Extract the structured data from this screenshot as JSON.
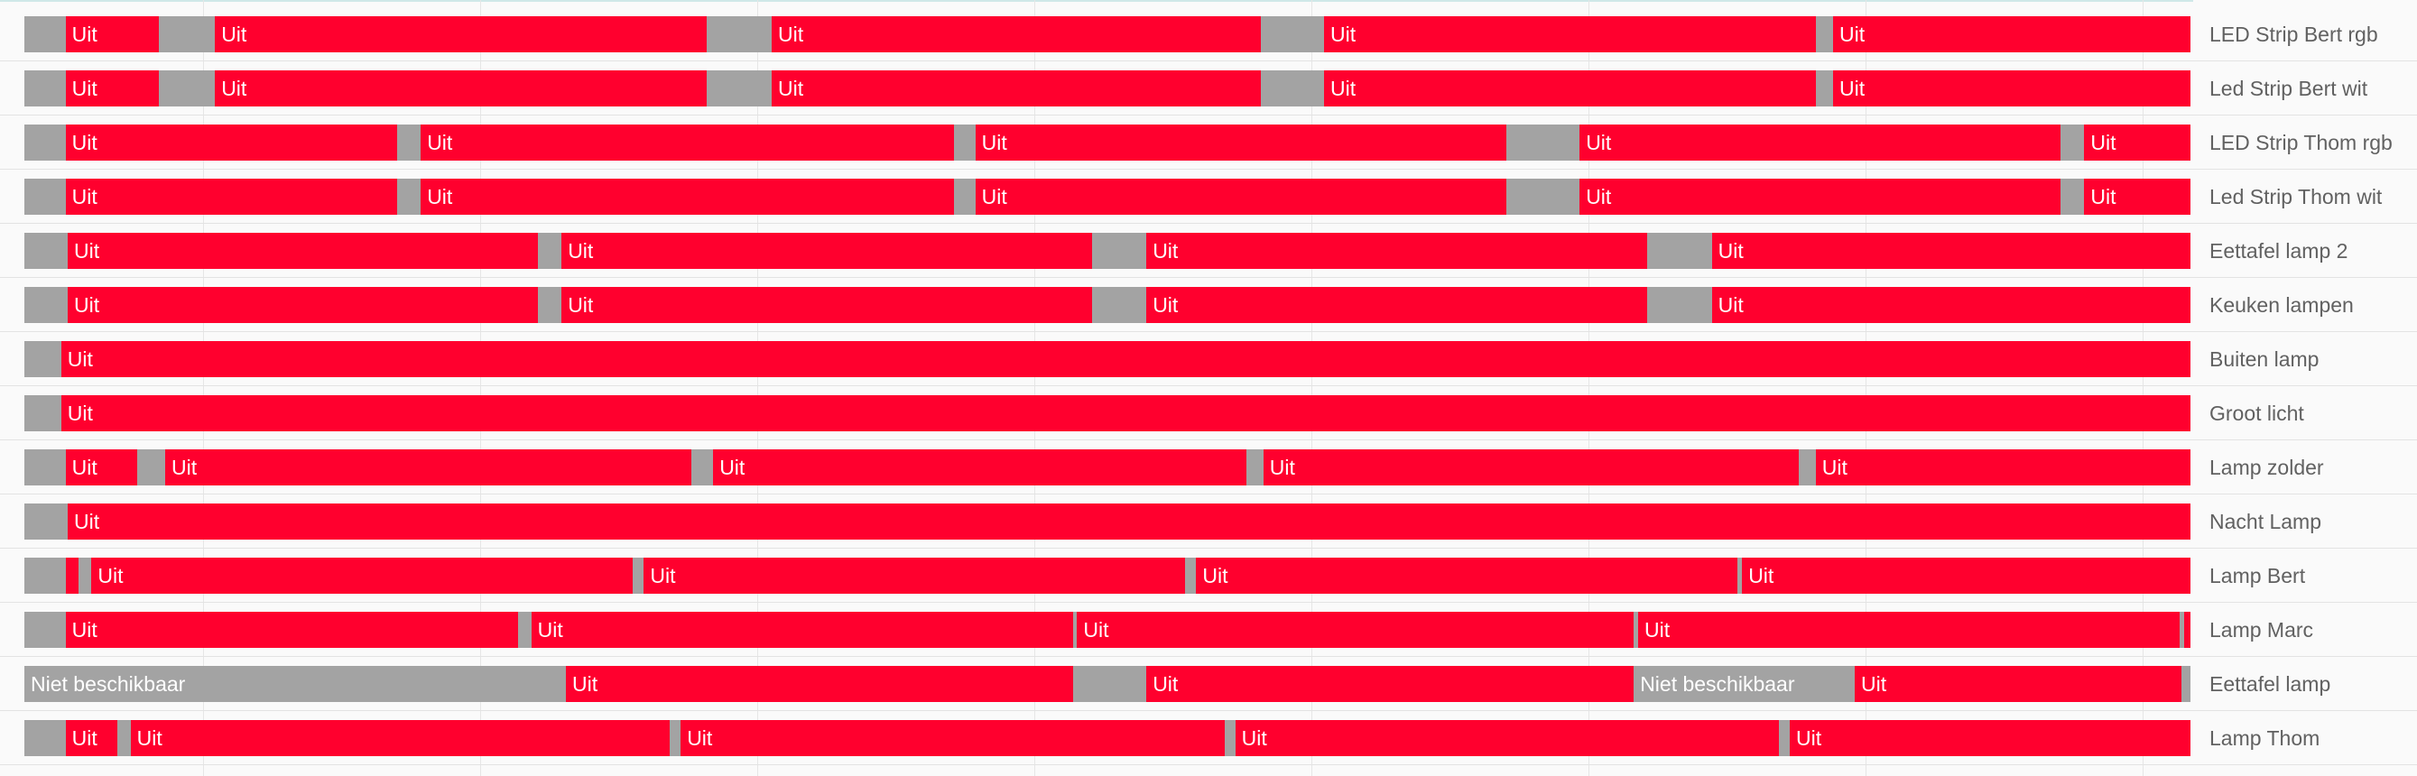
{
  "history": {
    "state_colors": {
      "off": "#ff002e",
      "unavailable": "#a3a3a3"
    },
    "rows": [
      {
        "label": "LED Strip Bert rgb",
        "segments": [
          {
            "state": "unavailable",
            "start": 0,
            "end": 0.019,
            "text": ""
          },
          {
            "state": "off",
            "start": 0.019,
            "end": 0.062,
            "text": "Uit"
          },
          {
            "state": "unavailable",
            "start": 0.062,
            "end": 0.088,
            "text": ""
          },
          {
            "state": "off",
            "start": 0.088,
            "end": 0.315,
            "text": "Uit"
          },
          {
            "state": "unavailable",
            "start": 0.315,
            "end": 0.345,
            "text": ""
          },
          {
            "state": "off",
            "start": 0.345,
            "end": 0.571,
            "text": "Uit"
          },
          {
            "state": "unavailable",
            "start": 0.571,
            "end": 0.6,
            "text": ""
          },
          {
            "state": "off",
            "start": 0.6,
            "end": 0.827,
            "text": "Uit"
          },
          {
            "state": "unavailable",
            "start": 0.827,
            "end": 0.835,
            "text": ""
          },
          {
            "state": "off",
            "start": 0.835,
            "end": 1,
            "text": "Uit"
          }
        ]
      },
      {
        "label": "Led Strip Bert wit",
        "segments": [
          {
            "state": "unavailable",
            "start": 0,
            "end": 0.019,
            "text": ""
          },
          {
            "state": "off",
            "start": 0.019,
            "end": 0.062,
            "text": "Uit"
          },
          {
            "state": "unavailable",
            "start": 0.062,
            "end": 0.088,
            "text": ""
          },
          {
            "state": "off",
            "start": 0.088,
            "end": 0.315,
            "text": "Uit"
          },
          {
            "state": "unavailable",
            "start": 0.315,
            "end": 0.345,
            "text": ""
          },
          {
            "state": "off",
            "start": 0.345,
            "end": 0.571,
            "text": "Uit"
          },
          {
            "state": "unavailable",
            "start": 0.571,
            "end": 0.6,
            "text": ""
          },
          {
            "state": "off",
            "start": 0.6,
            "end": 0.827,
            "text": "Uit"
          },
          {
            "state": "unavailable",
            "start": 0.827,
            "end": 0.835,
            "text": ""
          },
          {
            "state": "off",
            "start": 0.835,
            "end": 1,
            "text": "Uit"
          }
        ]
      },
      {
        "label": "LED Strip Thom rgb",
        "segments": [
          {
            "state": "unavailable",
            "start": 0,
            "end": 0.019,
            "text": ""
          },
          {
            "state": "off",
            "start": 0.019,
            "end": 0.172,
            "text": "Uit"
          },
          {
            "state": "unavailable",
            "start": 0.172,
            "end": 0.183,
            "text": ""
          },
          {
            "state": "off",
            "start": 0.183,
            "end": 0.429,
            "text": "Uit"
          },
          {
            "state": "unavailable",
            "start": 0.429,
            "end": 0.439,
            "text": ""
          },
          {
            "state": "off",
            "start": 0.439,
            "end": 0.684,
            "text": "Uit"
          },
          {
            "state": "unavailable",
            "start": 0.684,
            "end": 0.718,
            "text": ""
          },
          {
            "state": "off",
            "start": 0.718,
            "end": 0.94,
            "text": "Uit"
          },
          {
            "state": "unavailable",
            "start": 0.94,
            "end": 0.951,
            "text": ""
          },
          {
            "state": "off",
            "start": 0.951,
            "end": 1,
            "text": "Uit"
          }
        ]
      },
      {
        "label": "Led Strip Thom wit",
        "segments": [
          {
            "state": "unavailable",
            "start": 0,
            "end": 0.019,
            "text": ""
          },
          {
            "state": "off",
            "start": 0.019,
            "end": 0.172,
            "text": "Uit"
          },
          {
            "state": "unavailable",
            "start": 0.172,
            "end": 0.183,
            "text": ""
          },
          {
            "state": "off",
            "start": 0.183,
            "end": 0.429,
            "text": "Uit"
          },
          {
            "state": "unavailable",
            "start": 0.429,
            "end": 0.439,
            "text": ""
          },
          {
            "state": "off",
            "start": 0.439,
            "end": 0.684,
            "text": "Uit"
          },
          {
            "state": "unavailable",
            "start": 0.684,
            "end": 0.718,
            "text": ""
          },
          {
            "state": "off",
            "start": 0.718,
            "end": 0.94,
            "text": "Uit"
          },
          {
            "state": "unavailable",
            "start": 0.94,
            "end": 0.951,
            "text": ""
          },
          {
            "state": "off",
            "start": 0.951,
            "end": 1,
            "text": "Uit"
          }
        ]
      },
      {
        "label": "Eettafel lamp 2",
        "segments": [
          {
            "state": "unavailable",
            "start": 0,
            "end": 0.02,
            "text": ""
          },
          {
            "state": "off",
            "start": 0.02,
            "end": 0.237,
            "text": "Uit"
          },
          {
            "state": "unavailable",
            "start": 0.237,
            "end": 0.248,
            "text": ""
          },
          {
            "state": "off",
            "start": 0.248,
            "end": 0.493,
            "text": "Uit"
          },
          {
            "state": "unavailable",
            "start": 0.493,
            "end": 0.518,
            "text": ""
          },
          {
            "state": "off",
            "start": 0.518,
            "end": 0.749,
            "text": "Uit"
          },
          {
            "state": "unavailable",
            "start": 0.749,
            "end": 0.779,
            "text": ""
          },
          {
            "state": "off",
            "start": 0.779,
            "end": 1,
            "text": "Uit"
          }
        ]
      },
      {
        "label": "Keuken lampen",
        "segments": [
          {
            "state": "unavailable",
            "start": 0,
            "end": 0.02,
            "text": ""
          },
          {
            "state": "off",
            "start": 0.02,
            "end": 0.237,
            "text": "Uit"
          },
          {
            "state": "unavailable",
            "start": 0.237,
            "end": 0.248,
            "text": ""
          },
          {
            "state": "off",
            "start": 0.248,
            "end": 0.493,
            "text": "Uit"
          },
          {
            "state": "unavailable",
            "start": 0.493,
            "end": 0.518,
            "text": ""
          },
          {
            "state": "off",
            "start": 0.518,
            "end": 0.749,
            "text": "Uit"
          },
          {
            "state": "unavailable",
            "start": 0.749,
            "end": 0.779,
            "text": ""
          },
          {
            "state": "off",
            "start": 0.779,
            "end": 1,
            "text": "Uit"
          }
        ]
      },
      {
        "label": "Buiten lamp",
        "segments": [
          {
            "state": "unavailable",
            "start": 0,
            "end": 0.017,
            "text": ""
          },
          {
            "state": "off",
            "start": 0.017,
            "end": 1,
            "text": "Uit"
          }
        ]
      },
      {
        "label": "Groot licht",
        "segments": [
          {
            "state": "unavailable",
            "start": 0,
            "end": 0.017,
            "text": ""
          },
          {
            "state": "off",
            "start": 0.017,
            "end": 1,
            "text": "Uit"
          }
        ]
      },
      {
        "label": "Lamp zolder",
        "segments": [
          {
            "state": "unavailable",
            "start": 0,
            "end": 0.019,
            "text": ""
          },
          {
            "state": "off",
            "start": 0.019,
            "end": 0.052,
            "text": "Uit"
          },
          {
            "state": "unavailable",
            "start": 0.052,
            "end": 0.065,
            "text": ""
          },
          {
            "state": "off",
            "start": 0.065,
            "end": 0.308,
            "text": "Uit"
          },
          {
            "state": "unavailable",
            "start": 0.308,
            "end": 0.318,
            "text": ""
          },
          {
            "state": "off",
            "start": 0.318,
            "end": 0.564,
            "text": "Uit"
          },
          {
            "state": "unavailable",
            "start": 0.564,
            "end": 0.572,
            "text": ""
          },
          {
            "state": "off",
            "start": 0.572,
            "end": 0.819,
            "text": "Uit"
          },
          {
            "state": "unavailable",
            "start": 0.819,
            "end": 0.827,
            "text": ""
          },
          {
            "state": "off",
            "start": 0.827,
            "end": 1,
            "text": "Uit"
          }
        ]
      },
      {
        "label": "Nacht Lamp",
        "segments": [
          {
            "state": "unavailable",
            "start": 0,
            "end": 0.02,
            "text": ""
          },
          {
            "state": "off",
            "start": 0.02,
            "end": 1,
            "text": "Uit"
          }
        ]
      },
      {
        "label": "Lamp Bert",
        "segments": [
          {
            "state": "unavailable",
            "start": 0,
            "end": 0.019,
            "text": ""
          },
          {
            "state": "off",
            "start": 0.019,
            "end": 0.025,
            "text": ""
          },
          {
            "state": "unavailable",
            "start": 0.025,
            "end": 0.031,
            "text": ""
          },
          {
            "state": "off",
            "start": 0.031,
            "end": 0.281,
            "text": "Uit"
          },
          {
            "state": "unavailable",
            "start": 0.281,
            "end": 0.286,
            "text": ""
          },
          {
            "state": "off",
            "start": 0.286,
            "end": 0.536,
            "text": "Uit"
          },
          {
            "state": "unavailable",
            "start": 0.536,
            "end": 0.541,
            "text": ""
          },
          {
            "state": "off",
            "start": 0.541,
            "end": 0.791,
            "text": "Uit"
          },
          {
            "state": "unavailable",
            "start": 0.791,
            "end": 0.793,
            "text": ""
          },
          {
            "state": "off",
            "start": 0.793,
            "end": 1,
            "text": "Uit"
          }
        ]
      },
      {
        "label": "Lamp Marc",
        "segments": [
          {
            "state": "unavailable",
            "start": 0,
            "end": 0.019,
            "text": ""
          },
          {
            "state": "off",
            "start": 0.019,
            "end": 0.228,
            "text": "Uit"
          },
          {
            "state": "unavailable",
            "start": 0.228,
            "end": 0.234,
            "text": ""
          },
          {
            "state": "off",
            "start": 0.234,
            "end": 0.484,
            "text": "Uit"
          },
          {
            "state": "unavailable",
            "start": 0.484,
            "end": 0.486,
            "text": ""
          },
          {
            "state": "off",
            "start": 0.486,
            "end": 0.743,
            "text": "Uit"
          },
          {
            "state": "unavailable",
            "start": 0.743,
            "end": 0.745,
            "text": ""
          },
          {
            "state": "off",
            "start": 0.745,
            "end": 0.995,
            "text": "Uit"
          },
          {
            "state": "unavailable",
            "start": 0.995,
            "end": 0.997,
            "text": ""
          },
          {
            "state": "off",
            "start": 0.997,
            "end": 1,
            "text": ""
          }
        ]
      },
      {
        "label": "Eettafel lamp",
        "segments": [
          {
            "state": "unavailable",
            "start": 0,
            "end": 0.25,
            "text": "Niet beschikbaar"
          },
          {
            "state": "off",
            "start": 0.25,
            "end": 0.484,
            "text": "Uit"
          },
          {
            "state": "unavailable",
            "start": 0.484,
            "end": 0.518,
            "text": ""
          },
          {
            "state": "off",
            "start": 0.518,
            "end": 0.743,
            "text": "Uit"
          },
          {
            "state": "unavailable",
            "start": 0.743,
            "end": 0.845,
            "text": "Niet beschikbaar"
          },
          {
            "state": "off",
            "start": 0.845,
            "end": 0.996,
            "text": "Uit"
          },
          {
            "state": "unavailable",
            "start": 0.996,
            "end": 1,
            "text": ""
          }
        ]
      },
      {
        "label": "Lamp Thom",
        "segments": [
          {
            "state": "unavailable",
            "start": 0,
            "end": 0.019,
            "text": ""
          },
          {
            "state": "off",
            "start": 0.019,
            "end": 0.043,
            "text": "Uit"
          },
          {
            "state": "unavailable",
            "start": 0.043,
            "end": 0.049,
            "text": ""
          },
          {
            "state": "off",
            "start": 0.049,
            "end": 0.298,
            "text": "Uit"
          },
          {
            "state": "unavailable",
            "start": 0.298,
            "end": 0.303,
            "text": ""
          },
          {
            "state": "off",
            "start": 0.303,
            "end": 0.554,
            "text": "Uit"
          },
          {
            "state": "unavailable",
            "start": 0.554,
            "end": 0.559,
            "text": ""
          },
          {
            "state": "off",
            "start": 0.559,
            "end": 0.81,
            "text": "Uit"
          },
          {
            "state": "unavailable",
            "start": 0.81,
            "end": 0.815,
            "text": ""
          },
          {
            "state": "off",
            "start": 0.815,
            "end": 1,
            "text": "Uit"
          }
        ]
      }
    ]
  }
}
